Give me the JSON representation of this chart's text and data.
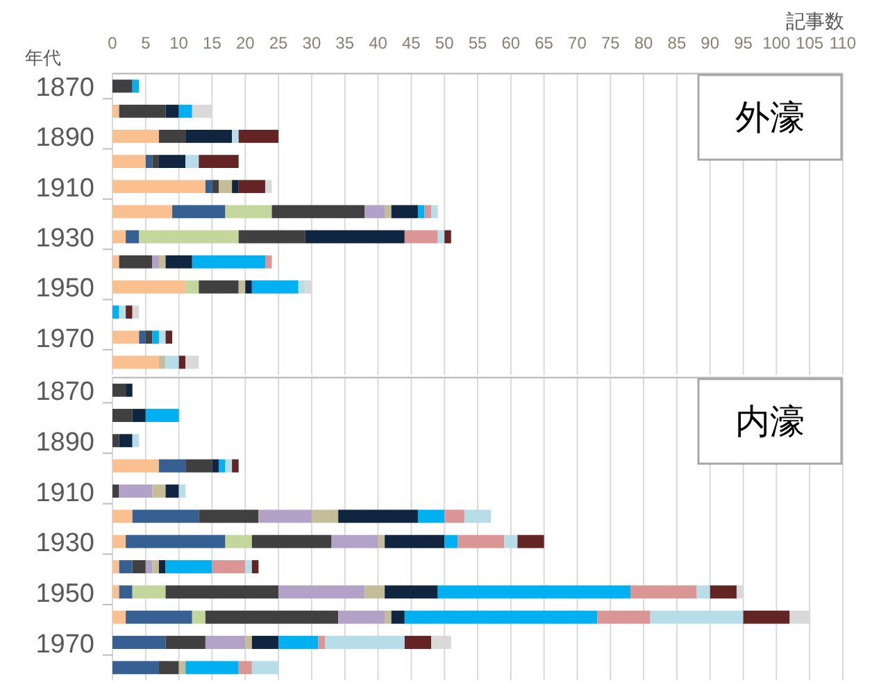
{
  "chart_data": [
    {
      "type": "bar",
      "orientation": "horizontal",
      "stacked": true,
      "title": "外濠",
      "xlabel": "記事数",
      "ylabel": "年代",
      "grid": "x",
      "categories": [
        "1870",
        null,
        "1890",
        null,
        "1910",
        null,
        "1930",
        null,
        "1950",
        null,
        "1970",
        null
      ],
      "xlim": [
        0,
        110
      ],
      "xticks": [
        0,
        5,
        10,
        15,
        20,
        25,
        30,
        35,
        40,
        45,
        50,
        55,
        60,
        65,
        70,
        75,
        80,
        85,
        90,
        95,
        100,
        105,
        110
      ],
      "series": [
        {
          "color": "#fac090",
          "values": [
            null,
            1,
            7,
            5,
            14,
            9,
            2,
            1,
            11,
            null,
            4,
            7
          ]
        },
        {
          "color": "#376092",
          "values": [
            null,
            null,
            null,
            1,
            1,
            8,
            2,
            null,
            null,
            null,
            1,
            null
          ]
        },
        {
          "color": "#c3d69b",
          "values": [
            null,
            null,
            null,
            null,
            null,
            7,
            15,
            null,
            2,
            null,
            null,
            null
          ]
        },
        {
          "color": "#404040",
          "values": [
            3,
            7,
            4,
            1,
            1,
            14,
            10,
            5,
            6,
            null,
            1,
            null
          ]
        },
        {
          "color": "#b3a2c7",
          "values": [
            null,
            null,
            null,
            null,
            null,
            3,
            null,
            1,
            null,
            null,
            null,
            null
          ]
        },
        {
          "color": "#c4bd97",
          "values": [
            null,
            null,
            null,
            null,
            2,
            1,
            null,
            1,
            1,
            null,
            null,
            1
          ]
        },
        {
          "color": "#10253f",
          "values": [
            null,
            2,
            7,
            4,
            1,
            4,
            15,
            4,
            1,
            null,
            null,
            null
          ]
        },
        {
          "color": "#00b0f0",
          "values": [
            1,
            2,
            null,
            null,
            null,
            1,
            null,
            11,
            7,
            1,
            1,
            null
          ]
        },
        {
          "color": "#d99694",
          "values": [
            null,
            null,
            null,
            null,
            null,
            1,
            5,
            1,
            null,
            null,
            null,
            null
          ]
        },
        {
          "color": "#b7dee8",
          "values": [
            null,
            null,
            1,
            2,
            null,
            1,
            1,
            null,
            1,
            1,
            1,
            2
          ]
        },
        {
          "color": "#632523",
          "values": [
            null,
            null,
            6,
            6,
            4,
            null,
            1,
            null,
            null,
            1,
            1,
            1
          ]
        },
        {
          "color": "#d9d9d9",
          "values": [
            null,
            3,
            null,
            null,
            1,
            null,
            null,
            null,
            1,
            1,
            null,
            2
          ]
        }
      ]
    },
    {
      "type": "bar",
      "orientation": "horizontal",
      "stacked": true,
      "title": "内濠",
      "grid": "x",
      "tick_labels": "y",
      "categories": [
        "1870",
        null,
        "1890",
        null,
        "1910",
        null,
        "1930",
        null,
        "1950",
        null,
        "1970",
        null
      ],
      "xlim": [
        0,
        110
      ],
      "xticks": [
        0,
        5,
        10,
        15,
        20,
        25,
        30,
        35,
        40,
        45,
        50,
        55,
        60,
        65,
        70,
        75,
        80,
        85,
        90,
        95,
        100,
        105,
        110
      ],
      "series": [
        {
          "color": "#fac090",
          "values": [
            null,
            null,
            null,
            7,
            null,
            3,
            2,
            1,
            1,
            2,
            null,
            null
          ]
        },
        {
          "color": "#376092",
          "values": [
            null,
            null,
            null,
            4,
            null,
            10,
            15,
            2,
            2,
            10,
            8,
            7
          ]
        },
        {
          "color": "#c3d69b",
          "values": [
            null,
            null,
            null,
            null,
            null,
            null,
            4,
            null,
            5,
            2,
            null,
            null
          ]
        },
        {
          "color": "#404040",
          "values": [
            2,
            3,
            1,
            4,
            1,
            9,
            12,
            2,
            17,
            20,
            6,
            3
          ]
        },
        {
          "color": "#b3a2c7",
          "values": [
            null,
            null,
            null,
            null,
            5,
            8,
            7,
            1,
            13,
            7,
            6,
            null
          ]
        },
        {
          "color": "#c4bd97",
          "values": [
            null,
            null,
            null,
            null,
            2,
            4,
            1,
            1,
            3,
            1,
            1,
            1
          ]
        },
        {
          "color": "#10253f",
          "values": [
            1,
            2,
            2,
            1,
            2,
            12,
            9,
            1,
            8,
            2,
            4,
            null
          ]
        },
        {
          "color": "#00b0f0",
          "values": [
            null,
            5,
            null,
            1,
            null,
            4,
            2,
            7,
            29,
            29,
            6,
            8
          ]
        },
        {
          "color": "#d99694",
          "values": [
            null,
            null,
            null,
            null,
            null,
            3,
            7,
            5,
            10,
            8,
            1,
            2
          ]
        },
        {
          "color": "#b7dee8",
          "values": [
            null,
            null,
            1,
            1,
            1,
            4,
            2,
            1,
            2,
            14,
            12,
            4
          ]
        },
        {
          "color": "#632523",
          "values": [
            null,
            null,
            null,
            1,
            null,
            null,
            4,
            1,
            4,
            7,
            4,
            null
          ]
        },
        {
          "color": "#d9d9d9",
          "values": [
            null,
            null,
            null,
            null,
            null,
            null,
            null,
            null,
            1,
            3,
            3,
            null
          ]
        }
      ]
    }
  ]
}
